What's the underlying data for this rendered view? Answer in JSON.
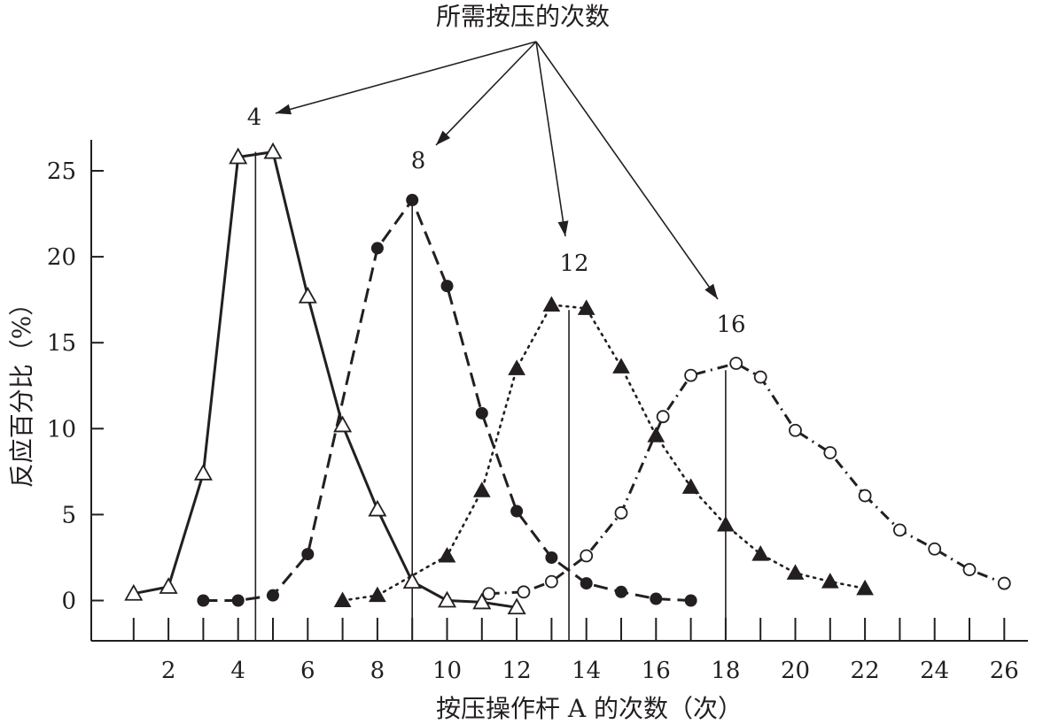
{
  "chart_data": {
    "type": "line",
    "title": "所需按压的次数",
    "xlabel": "按压操作杆 A 的次数（次）",
    "ylabel": "反应百分比（%）",
    "xlim": [
      0,
      27
    ],
    "ylim": [
      -2.5,
      26.5
    ],
    "xticks": [
      1,
      2,
      3,
      4,
      5,
      6,
      7,
      8,
      9,
      10,
      11,
      12,
      13,
      14,
      15,
      16,
      17,
      18,
      19,
      20,
      21,
      22,
      23,
      24,
      25,
      26
    ],
    "xtick_labels": [
      2,
      4,
      6,
      8,
      10,
      12,
      14,
      16,
      18,
      20,
      22,
      24,
      26
    ],
    "yticks": [
      0,
      5,
      10,
      15,
      20,
      25
    ],
    "grid": false,
    "series": [
      {
        "name": "4",
        "marker": "open-triangle",
        "line": "solid",
        "points": [
          [
            1,
            0.4
          ],
          [
            2,
            0.8
          ],
          [
            3,
            7.4
          ],
          [
            4,
            25.8
          ],
          [
            5,
            26.1
          ],
          [
            6,
            17.7
          ],
          [
            7,
            10.2
          ],
          [
            8,
            5.3
          ],
          [
            9,
            1.1
          ],
          [
            10,
            0
          ],
          [
            11,
            -0.1
          ],
          [
            12,
            -0.4
          ]
        ]
      },
      {
        "name": "8",
        "marker": "filled-circle",
        "line": "dashed",
        "points": [
          [
            3,
            0
          ],
          [
            4,
            0
          ],
          [
            5,
            0.3
          ],
          [
            6,
            2.7
          ],
          [
            8,
            20.5
          ],
          [
            9,
            23.3
          ],
          [
            10,
            18.3
          ],
          [
            11,
            10.9
          ],
          [
            12,
            5.2
          ],
          [
            13,
            2.5
          ],
          [
            14,
            1
          ],
          [
            15,
            0.5
          ],
          [
            16,
            0.1
          ],
          [
            17,
            0
          ]
        ]
      },
      {
        "name": "12",
        "marker": "filled-triangle",
        "line": "dotted",
        "points": [
          [
            7,
            0
          ],
          [
            8,
            0.3
          ],
          [
            10,
            2.6
          ],
          [
            11,
            6.4
          ],
          [
            12,
            13.5
          ],
          [
            13,
            17.2
          ],
          [
            14,
            17
          ],
          [
            15,
            13.6
          ],
          [
            16,
            9.6
          ],
          [
            17,
            6.6
          ],
          [
            18,
            4.4
          ],
          [
            19,
            2.7
          ],
          [
            20,
            1.6
          ],
          [
            21,
            1.1
          ],
          [
            22,
            0.7
          ]
        ]
      },
      {
        "name": "16",
        "marker": "open-circle",
        "line": "dash-dot",
        "points": [
          [
            11.2,
            0.4
          ],
          [
            12.2,
            0.5
          ],
          [
            13,
            1.1
          ],
          [
            14,
            2.6
          ],
          [
            15,
            5.1
          ],
          [
            16.2,
            10.7
          ],
          [
            17,
            13.1
          ],
          [
            18.3,
            13.8
          ],
          [
            19,
            13
          ],
          [
            20,
            9.9
          ],
          [
            21,
            8.6
          ],
          [
            22,
            6.1
          ],
          [
            23,
            4.1
          ],
          [
            24,
            3
          ],
          [
            25,
            1.8
          ],
          [
            26,
            1
          ]
        ]
      }
    ],
    "reference_lines": [
      {
        "label": "4",
        "x": 4.5,
        "y_top": 26.1
      },
      {
        "label": "8",
        "x": 9,
        "y_top": 23.2
      },
      {
        "label": "12",
        "x": 13.5,
        "y_top": 16.9
      },
      {
        "label": "16",
        "x": 18,
        "y_top": 13.4
      }
    ]
  }
}
